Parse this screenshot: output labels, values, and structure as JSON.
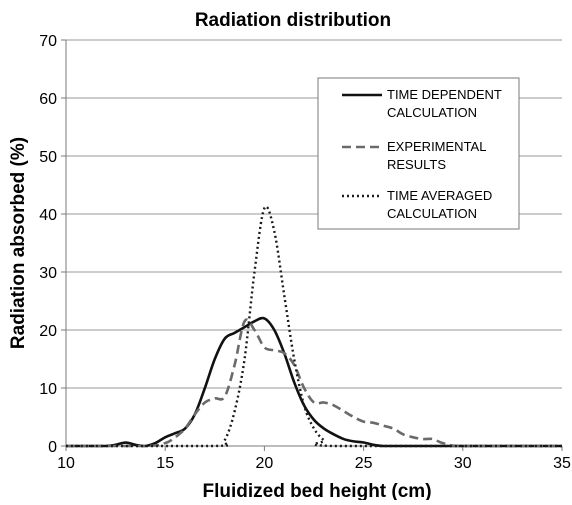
{
  "chart_data": {
    "type": "line",
    "title": "Radiation distribution",
    "xlabel": "Fluidized bed height (cm)",
    "ylabel": "Radiation absorbed (%)",
    "xlim": [
      10,
      35
    ],
    "ylim": [
      0,
      70
    ],
    "xticks": [
      10,
      15,
      20,
      25,
      30,
      35
    ],
    "yticks": [
      0,
      10,
      20,
      30,
      40,
      50,
      60,
      70
    ],
    "grid": "horizontal",
    "legend_position": "top-right",
    "series": [
      {
        "name": [
          "TIME DEPENDENT",
          "CALCULATION"
        ],
        "style": "solid",
        "x": [
          10,
          11,
          12,
          12.5,
          13,
          13.5,
          14,
          14.5,
          15,
          15.5,
          16,
          16.5,
          17,
          17.5,
          18,
          18.5,
          19,
          19.5,
          20,
          20.5,
          21,
          21.5,
          22,
          22.5,
          23,
          23.5,
          24,
          24.5,
          25,
          25.5,
          26,
          27,
          28,
          30,
          35
        ],
        "y": [
          0,
          0,
          0,
          0.2,
          0.6,
          0.2,
          0,
          0.5,
          1.5,
          2.2,
          3,
          5.5,
          10,
          15,
          18.5,
          19.5,
          20.5,
          21.5,
          22,
          20,
          16,
          11,
          7,
          4.5,
          3,
          2,
          1.2,
          0.8,
          0.6,
          0.2,
          0,
          0,
          0,
          0,
          0
        ]
      },
      {
        "name": [
          "EXPERIMENTAL",
          "RESULTS"
        ],
        "style": "dashed",
        "x": [
          10,
          14,
          15,
          15.5,
          16,
          16.5,
          17,
          17.5,
          18,
          18.5,
          19,
          19.5,
          20,
          20.5,
          21,
          21.5,
          22,
          22.5,
          23,
          23.5,
          24,
          24.5,
          25,
          25.5,
          26,
          26.5,
          27,
          27.5,
          28,
          28.5,
          29,
          30,
          35
        ],
        "y": [
          0,
          0,
          0.5,
          1.5,
          3,
          5.5,
          7.5,
          8.2,
          8.5,
          14,
          21.5,
          20,
          17,
          16.5,
          16,
          14,
          10,
          7.5,
          7.5,
          7,
          6,
          5,
          4.2,
          4,
          3.5,
          3,
          2,
          1.5,
          1.2,
          1.2,
          0.5,
          0,
          0
        ]
      },
      {
        "name": [
          "TIME AVERAGED",
          "CALCULATION"
        ],
        "style": "dotted",
        "x": [
          10,
          17.5,
          18,
          18.5,
          19,
          19.5,
          20,
          20.5,
          21,
          21.5,
          22,
          22.5,
          23,
          23.5,
          35
        ],
        "y": [
          0,
          0,
          1,
          6,
          15,
          30,
          41,
          37,
          26,
          15,
          7,
          3,
          1,
          0,
          0
        ]
      }
    ]
  }
}
